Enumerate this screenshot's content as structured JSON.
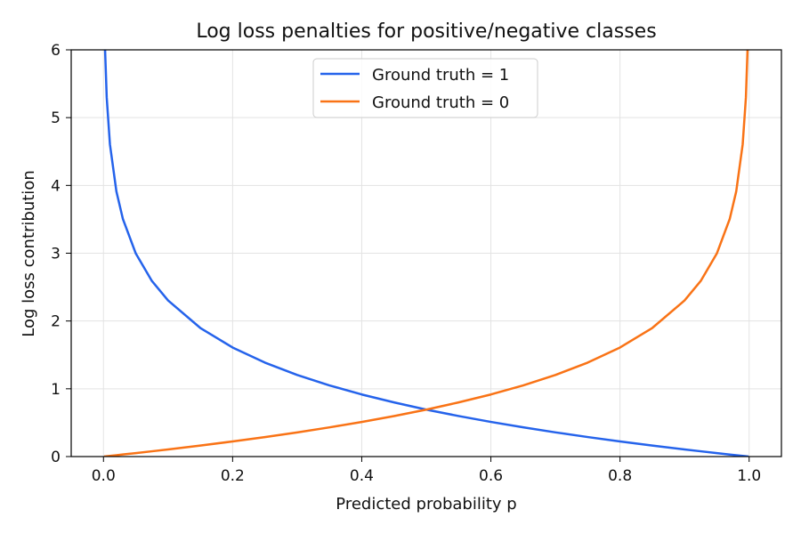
{
  "chart_data": {
    "type": "line",
    "title": "Log loss penalties for positive/negative classes",
    "xlabel": "Predicted probability p",
    "ylabel": "Log loss contribution",
    "xlim": [
      -0.05,
      1.05
    ],
    "ylim": [
      0,
      6
    ],
    "grid": true,
    "legend": "upper center",
    "xticks": [
      "0.0",
      "0.2",
      "0.4",
      "0.6",
      "0.8",
      "1.0"
    ],
    "yticks": [
      "0",
      "1",
      "2",
      "3",
      "4",
      "5",
      "6"
    ],
    "x": [
      0.001,
      0.0025,
      0.005,
      0.01,
      0.02,
      0.03,
      0.05,
      0.075,
      0.1,
      0.15,
      0.2,
      0.25,
      0.3,
      0.35,
      0.4,
      0.45,
      0.5,
      0.55,
      0.6,
      0.65,
      0.7,
      0.75,
      0.8,
      0.85,
      0.9,
      0.925,
      0.95,
      0.97,
      0.98,
      0.99,
      0.995,
      0.9975,
      0.999
    ],
    "series": [
      {
        "name": "Ground truth = 1",
        "color": "#2563eb",
        "values": [
          6.908,
          5.991,
          5.298,
          4.605,
          3.912,
          3.507,
          2.996,
          2.59,
          2.303,
          1.897,
          1.609,
          1.386,
          1.204,
          1.05,
          0.916,
          0.799,
          0.693,
          0.598,
          0.511,
          0.431,
          0.357,
          0.288,
          0.223,
          0.163,
          0.105,
          0.078,
          0.051,
          0.03,
          0.02,
          0.01,
          0.005,
          0.0025,
          0.001
        ]
      },
      {
        "name": "Ground truth = 0",
        "color": "#f97316",
        "values": [
          0.001,
          0.0025,
          0.005,
          0.01005,
          0.0202,
          0.0305,
          0.0513,
          0.078,
          0.1054,
          0.1625,
          0.2231,
          0.2877,
          0.3567,
          0.4308,
          0.5108,
          0.5978,
          0.693,
          0.799,
          0.916,
          1.05,
          1.204,
          1.386,
          1.609,
          1.897,
          2.303,
          2.59,
          2.996,
          3.507,
          3.912,
          4.605,
          5.298,
          5.991,
          6.908
        ]
      }
    ]
  }
}
